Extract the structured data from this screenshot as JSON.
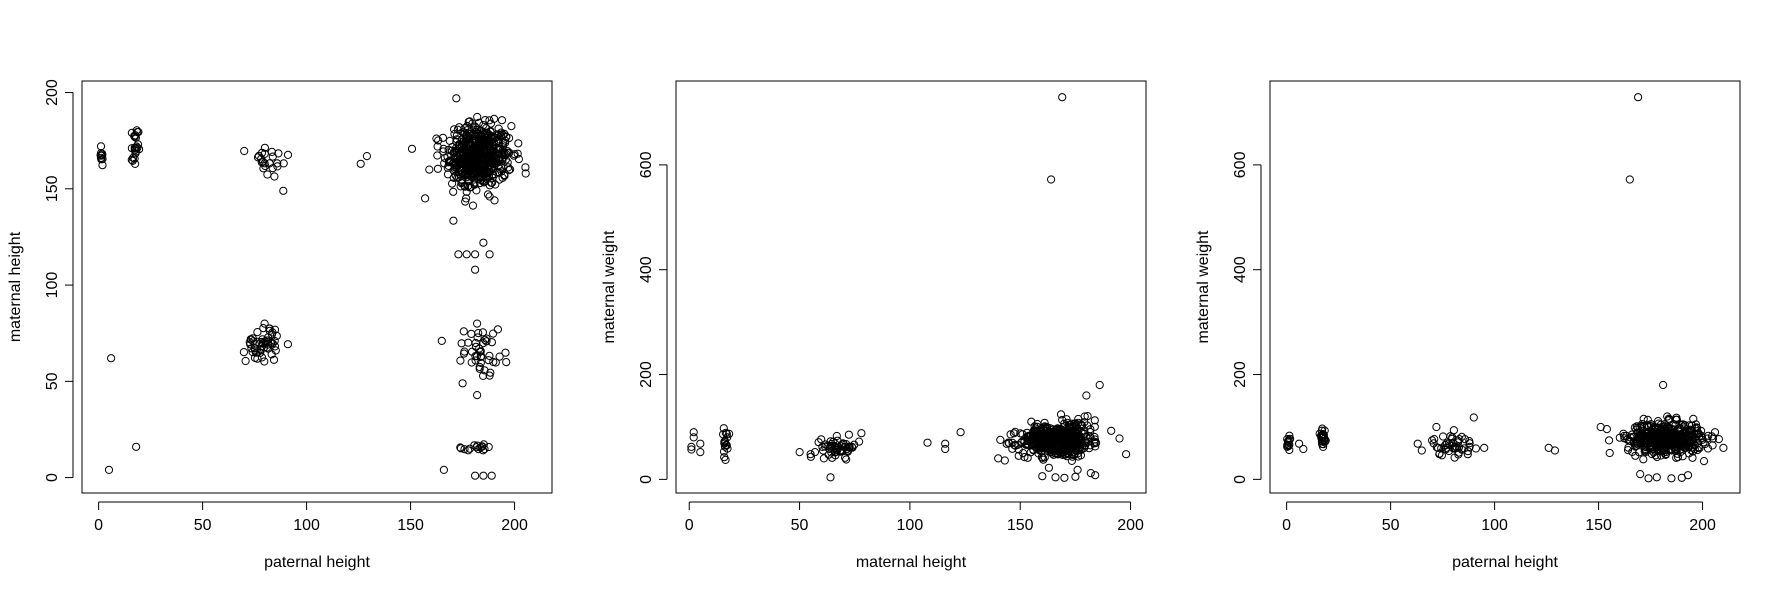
{
  "chart_data": [
    {
      "type": "scatter",
      "xlabel": "paternal height",
      "ylabel": "maternal height",
      "xlim": [
        -8,
        218
      ],
      "ylim": [
        -8,
        206
      ],
      "xticks": [
        0,
        50,
        100,
        150,
        200
      ],
      "yticks": [
        0,
        50,
        100,
        150,
        200
      ],
      "marker": "open-circle",
      "color": "#000000",
      "clusters": [
        {
          "x": [
            183,
            8
          ],
          "y": [
            167,
            8
          ],
          "n": 420
        },
        {
          "x": [
            180,
            4
          ],
          "y": [
            166,
            9
          ],
          "n": 140
        },
        {
          "x": [
            79,
            4
          ],
          "y": [
            70,
            5
          ],
          "n": 55
        },
        {
          "x": [
            184,
            4
          ],
          "y": [
            66,
            6
          ],
          "n": 40
        },
        {
          "x": [
            17.5,
            0.8
          ],
          "y": [
            170,
            6
          ],
          "n": 24
        },
        {
          "x": [
            1.2,
            0.5
          ],
          "y": [
            164,
            6
          ],
          "n": 10
        },
        {
          "x": [
            82,
            5
          ],
          "y": [
            164,
            5
          ],
          "n": 24
        },
        {
          "x": [
            180,
            7
          ],
          "y": [
            15.5,
            0.8
          ],
          "n": 16
        }
      ],
      "points": [
        [
          6,
          62
        ],
        [
          18,
          16
        ],
        [
          5,
          4
        ],
        [
          126,
          163
        ],
        [
          129,
          167
        ],
        [
          157,
          145
        ],
        [
          166,
          4
        ],
        [
          181,
          1
        ],
        [
          185,
          1
        ],
        [
          189,
          1
        ],
        [
          173,
          116
        ],
        [
          177,
          116
        ],
        [
          181,
          116
        ],
        [
          188,
          116
        ],
        [
          181,
          108
        ],
        [
          185,
          122
        ],
        [
          184,
          63
        ],
        [
          182,
          80
        ],
        [
          188,
          53
        ],
        [
          175,
          49
        ],
        [
          165,
          71
        ],
        [
          172,
          197
        ],
        [
          188,
          146
        ],
        [
          196,
          60
        ],
        [
          192,
          77
        ],
        [
          163,
          172
        ],
        [
          159,
          160
        ],
        [
          200,
          168
        ]
      ]
    },
    {
      "type": "scatter",
      "xlabel": "maternal height",
      "ylabel": "maternal weight",
      "xlim": [
        -6,
        207
      ],
      "ylim": [
        -26,
        760
      ],
      "xticks": [
        0,
        50,
        100,
        150,
        200
      ],
      "yticks": [
        0,
        200,
        400,
        600
      ],
      "marker": "open-circle",
      "color": "#000000",
      "clusters": [
        {
          "x": [
            166,
            8
          ],
          "y": [
            72,
            14
          ],
          "n": 380
        },
        {
          "x": [
            172,
            6
          ],
          "y": [
            85,
            18
          ],
          "n": 140
        },
        {
          "x": [
            68,
            4
          ],
          "y": [
            62,
            9
          ],
          "n": 55
        },
        {
          "x": [
            16.5,
            0.8
          ],
          "y": [
            68,
            14
          ],
          "n": 18
        }
      ],
      "points": [
        [
          169,
          729
        ],
        [
          164,
          572
        ],
        [
          1,
          62
        ],
        [
          2,
          90
        ],
        [
          2,
          80
        ],
        [
          1,
          57
        ],
        [
          5,
          52
        ],
        [
          5,
          68
        ],
        [
          50,
          52
        ],
        [
          55,
          48
        ],
        [
          57,
          52
        ],
        [
          64,
          4
        ],
        [
          77,
          72
        ],
        [
          78,
          88
        ],
        [
          108,
          70
        ],
        [
          116,
          58
        ],
        [
          116,
          68
        ],
        [
          123,
          90
        ],
        [
          140,
          40
        ],
        [
          143,
          36
        ],
        [
          195,
          78
        ],
        [
          198,
          48
        ],
        [
          186,
          180
        ],
        [
          180,
          160
        ],
        [
          155,
          110
        ],
        [
          160,
          6
        ],
        [
          166,
          4
        ],
        [
          170,
          3
        ],
        [
          175,
          5
        ],
        [
          184,
          8
        ],
        [
          163,
          22
        ],
        [
          176,
          18
        ],
        [
          182,
          12
        ]
      ]
    },
    {
      "type": "scatter",
      "xlabel": "paternal height",
      "ylabel": "maternal weight",
      "xlim": [
        -8,
        218
      ],
      "ylim": [
        -26,
        760
      ],
      "xticks": [
        0,
        50,
        100,
        150,
        200
      ],
      "yticks": [
        0,
        200,
        400,
        600
      ],
      "marker": "open-circle",
      "color": "#000000",
      "clusters": [
        {
          "x": [
            182,
            9
          ],
          "y": [
            78,
            15
          ],
          "n": 460
        },
        {
          "x": [
            80,
            5
          ],
          "y": [
            65,
            10
          ],
          "n": 45
        },
        {
          "x": [
            17.5,
            0.8
          ],
          "y": [
            78,
            14
          ],
          "n": 22
        },
        {
          "x": [
            1,
            0.6
          ],
          "y": [
            70,
            12
          ],
          "n": 12
        }
      ],
      "points": [
        [
          169,
          729
        ],
        [
          165,
          572
        ],
        [
          6,
          68
        ],
        [
          8,
          58
        ],
        [
          63,
          68
        ],
        [
          65,
          55
        ],
        [
          72,
          100
        ],
        [
          90,
          118
        ],
        [
          95,
          60
        ],
        [
          126,
          60
        ],
        [
          129,
          55
        ],
        [
          151,
          100
        ],
        [
          154,
          96
        ],
        [
          210,
          60
        ],
        [
          206,
          90
        ],
        [
          181,
          180
        ],
        [
          178,
          4
        ],
        [
          185,
          2
        ],
        [
          190,
          3
        ],
        [
          174,
          2
        ],
        [
          170,
          10
        ],
        [
          193,
          8
        ],
        [
          183,
          120
        ]
      ]
    }
  ]
}
